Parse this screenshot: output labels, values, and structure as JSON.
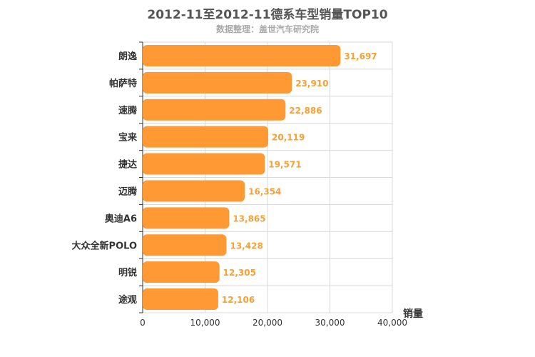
{
  "chart_data": {
    "type": "bar",
    "orientation": "horizontal",
    "title": "2012-11至2012-11德系车型销量TOP10",
    "subtitle": "数据整理：盖世汽车研究院",
    "categories": [
      "朗逸",
      "帕萨特",
      "速腾",
      "宝来",
      "捷达",
      "迈腾",
      "奥迪A6",
      "大众全新POLO",
      "明锐",
      "途观"
    ],
    "values": [
      31697,
      23910,
      22886,
      20119,
      19571,
      16354,
      13865,
      13428,
      12305,
      12106
    ],
    "data_labels": [
      "31,697",
      "23,910",
      "22,886",
      "20,119",
      "19,571",
      "16,354",
      "13,865",
      "13,428",
      "12,305",
      "12,106"
    ],
    "xlabel": "销量",
    "xlim": [
      0,
      40000
    ],
    "xticks": [
      0,
      10000,
      20000,
      30000,
      40000
    ],
    "xtick_labels": [
      "0",
      "10,000",
      "20,000",
      "30,000",
      "40,000"
    ],
    "grid": true,
    "colors": {
      "bar": "#ff9933",
      "data_label": "#f7a035",
      "grid": "#d8d8d8",
      "axis": "#333333"
    }
  }
}
